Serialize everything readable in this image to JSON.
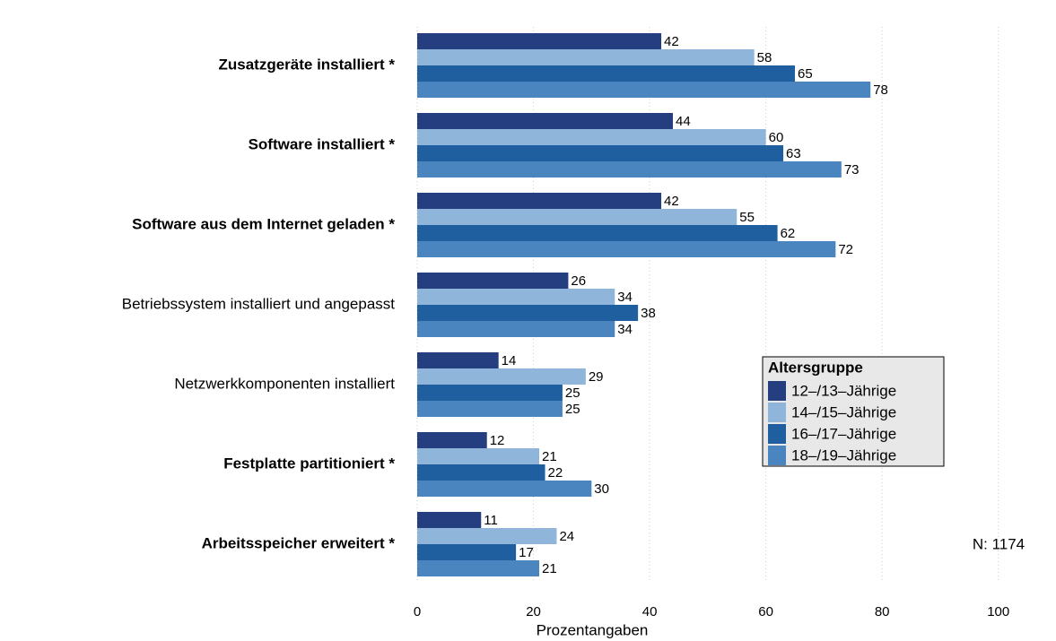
{
  "chart_data": {
    "type": "barh",
    "categories": [
      "Zusatzgeräte installiert *",
      "Software installiert *",
      "Software aus dem Internet geladen *",
      "Betriebssystem installiert und angepasst",
      "Netzwerkkomponenten installiert",
      "Festplatte partitioniert *",
      "Arbeitsspeicher erweitert *"
    ],
    "series": [
      {
        "name": "12–/13–Jährige",
        "color": "#243e7f",
        "values": [
          42,
          44,
          42,
          26,
          14,
          12,
          11
        ]
      },
      {
        "name": "14–/15–Jährige",
        "color": "#8fb5db",
        "values": [
          58,
          60,
          55,
          34,
          29,
          21,
          24
        ]
      },
      {
        "name": "16–/17–Jährige",
        "color": "#1f5fa0",
        "values": [
          65,
          63,
          62,
          38,
          25,
          22,
          17
        ]
      },
      {
        "name": "18–/19–Jährige",
        "color": "#4a85bf",
        "values": [
          78,
          73,
          72,
          34,
          25,
          30,
          21
        ]
      }
    ],
    "xlim": [
      0,
      109
    ],
    "xticks": [
      0,
      20,
      40,
      60,
      80,
      100
    ],
    "grid": true,
    "x_label": "Prozentangaben",
    "legend_title": "Altersgruppe",
    "annotation": "N: 1174"
  }
}
